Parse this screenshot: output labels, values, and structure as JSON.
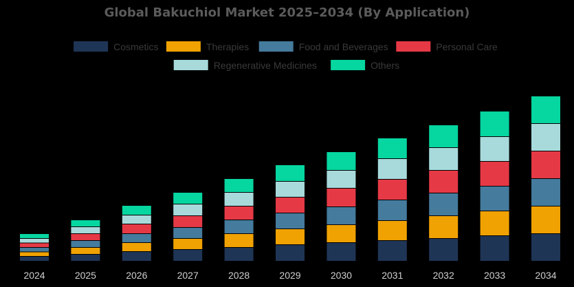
{
  "chart_data": {
    "type": "bar",
    "stacked": true,
    "title": "Global Bakuchiol Market 2025–2034 (By Application)",
    "xlabel": "",
    "ylabel": "",
    "categories": [
      "2024",
      "2025",
      "2026",
      "2027",
      "2028",
      "2029",
      "2030",
      "2031",
      "2032",
      "2033",
      "2034"
    ],
    "series": [
      {
        "name": "Cosmetics",
        "color": "#1f3556",
        "values": [
          7,
          10,
          14,
          17,
          20,
          24,
          27,
          30,
          33,
          37,
          40
        ]
      },
      {
        "name": "Therapies",
        "color": "#f0a202",
        "values": [
          6.5,
          10,
          13,
          16,
          20,
          23,
          26,
          29,
          33,
          36,
          40
        ]
      },
      {
        "name": "Food and Beverages",
        "color": "#457b9d",
        "values": [
          6.5,
          10,
          13,
          16,
          20,
          23,
          26,
          30,
          33,
          36,
          40
        ]
      },
      {
        "name": "Personal Care",
        "color": "#e63946",
        "values": [
          6.5,
          10,
          14,
          17,
          20,
          23,
          27,
          30,
          33,
          36,
          40
        ]
      },
      {
        "name": "Regenerative Medicines",
        "color": "#a8dadc",
        "values": [
          6.5,
          10,
          13,
          17,
          20,
          23,
          26,
          30,
          33,
          36,
          40
        ]
      },
      {
        "name": "Others",
        "color": "#06d6a0",
        "values": [
          7,
          10,
          14,
          17,
          20,
          24,
          27,
          30,
          33,
          37,
          40
        ]
      }
    ],
    "ylim": [
      0,
      240
    ],
    "grid": false,
    "legend_position": "top"
  }
}
